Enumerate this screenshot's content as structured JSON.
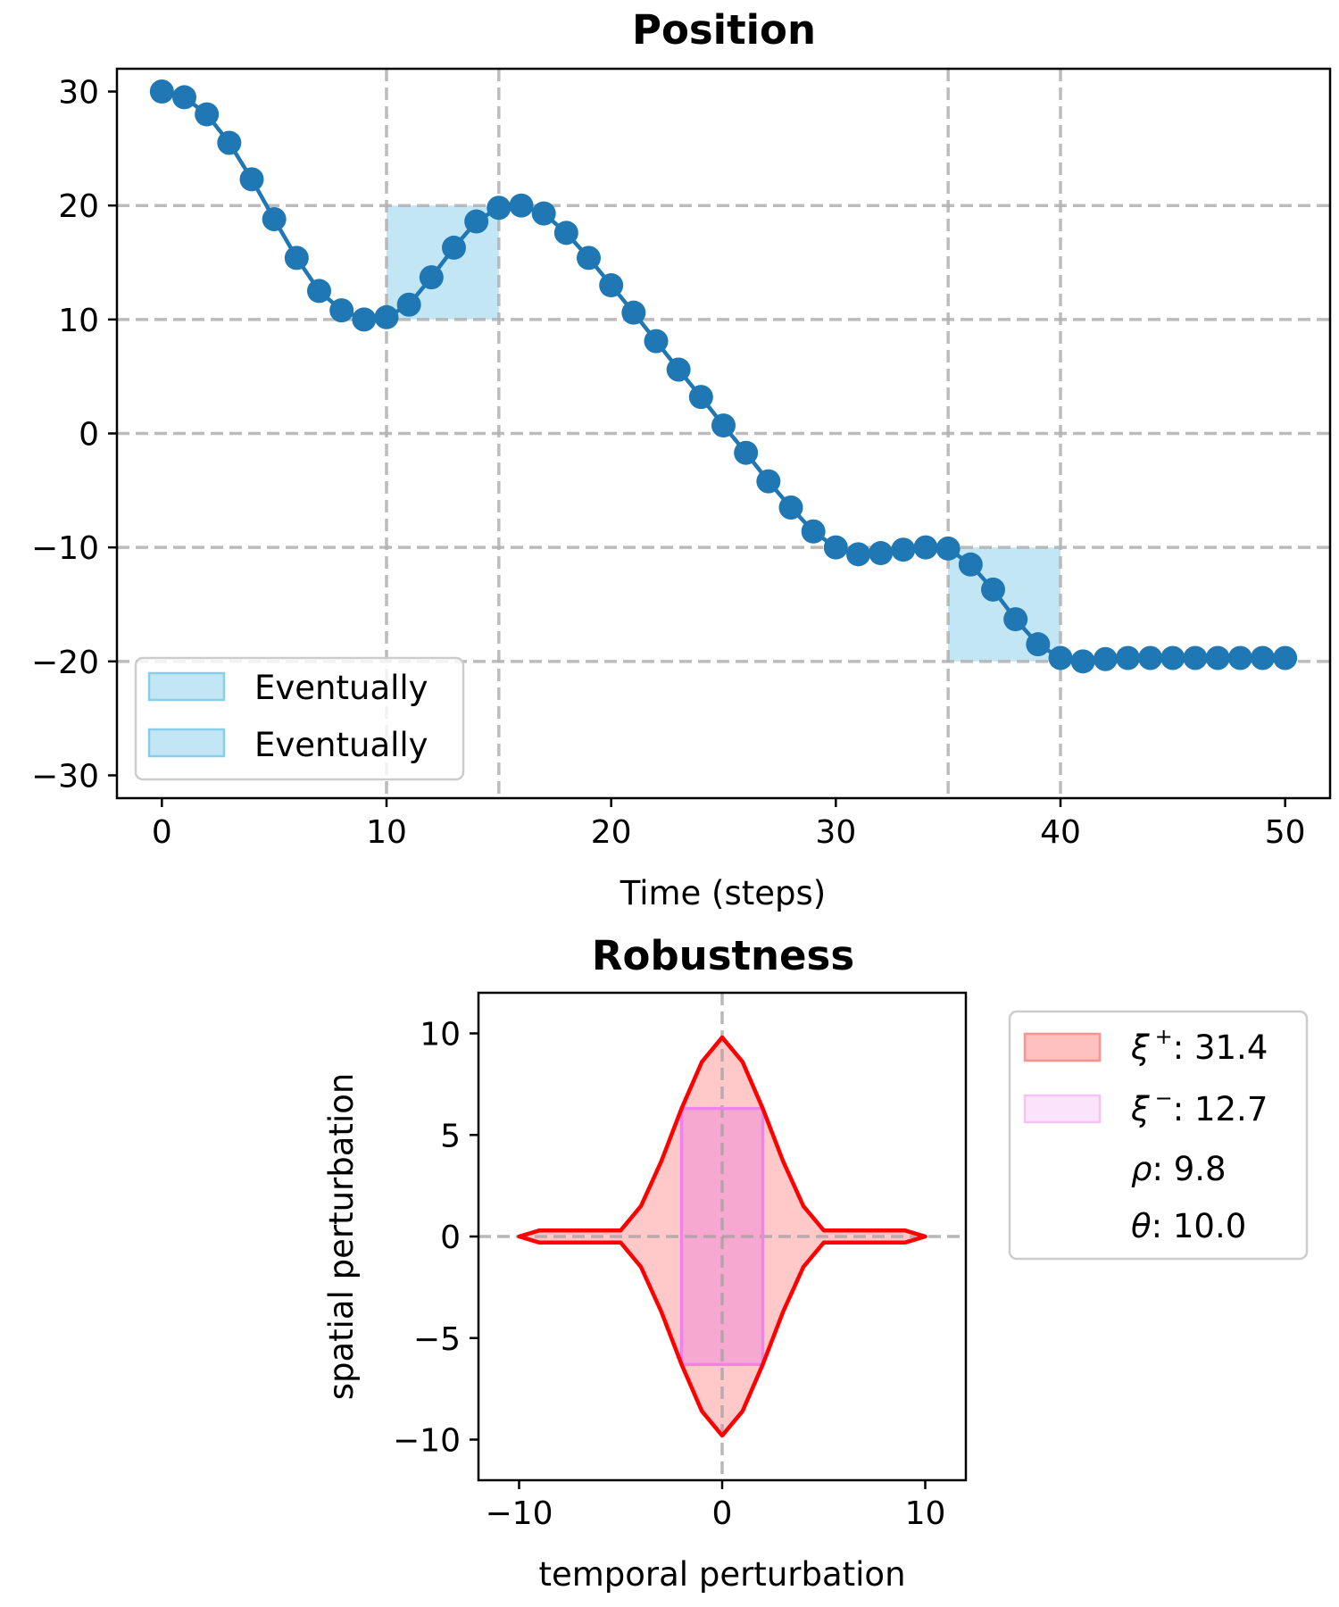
{
  "chart_data": [
    {
      "type": "line",
      "title": "Position",
      "xlabel": "Time (steps)",
      "ylabel": "",
      "xlim": [
        -2,
        52
      ],
      "ylim": [
        -32,
        32
      ],
      "xticks": [
        0,
        10,
        20,
        30,
        40,
        50
      ],
      "yticks": [
        -30,
        -20,
        -10,
        0,
        10,
        20,
        30
      ],
      "xtick_labels": [
        "0",
        "10",
        "20",
        "30",
        "40",
        "50"
      ],
      "ytick_labels": [
        "−30",
        "−20",
        "−10",
        "0",
        "10",
        "20",
        "30"
      ],
      "grid_x": [
        10,
        15,
        35,
        40
      ],
      "grid_y": [
        -20,
        -10,
        10,
        20
      ],
      "grid_y_dashed_full": [
        0
      ],
      "grid": true,
      "series": [
        {
          "color": "#1f77b4",
          "marker": "circle",
          "x": [
            0,
            1,
            2,
            3,
            4,
            5,
            6,
            7,
            8,
            9,
            10,
            11,
            12,
            13,
            14,
            15,
            16,
            17,
            18,
            19,
            20,
            21,
            22,
            23,
            24,
            25,
            26,
            27,
            28,
            29,
            30,
            31,
            32,
            33,
            34,
            35,
            36,
            37,
            38,
            39,
            40,
            41,
            42,
            43,
            44,
            45,
            46,
            47,
            48,
            49,
            50
          ],
          "y": [
            30,
            29.5,
            28,
            25.5,
            22.3,
            18.8,
            15.4,
            12.5,
            10.8,
            10,
            10.2,
            11.3,
            13.7,
            16.3,
            18.6,
            19.8,
            20,
            19.3,
            17.6,
            15.4,
            13,
            10.6,
            8.1,
            5.6,
            3.2,
            0.7,
            -1.7,
            -4.2,
            -6.5,
            -8.6,
            -10,
            -10.6,
            -10.5,
            -10.2,
            -10,
            -10.1,
            -11.5,
            -13.7,
            -16.3,
            -18.5,
            -19.7,
            -20,
            -19.8,
            -19.7,
            -19.7,
            -19.7,
            -19.7,
            -19.7,
            -19.7,
            -19.7,
            -19.7
          ]
        }
      ],
      "regions": [
        {
          "x0": 10,
          "x1": 15,
          "y0": 10,
          "y1": 20,
          "label": "Eventually",
          "color": "#87ceeb"
        },
        {
          "x0": 35,
          "x1": 40,
          "y0": -20,
          "y1": -10,
          "label": "Eventually",
          "color": "#87ceeb"
        }
      ],
      "legend": {
        "placement": "lower-left",
        "entries": [
          {
            "label": "Eventually",
            "color": "#87ceeb"
          },
          {
            "label": "Eventually",
            "color": "#87ceeb"
          }
        ]
      }
    },
    {
      "type": "area",
      "title": "Robustness",
      "xlabel": "temporal perturbation",
      "ylabel": "spatial perturbation",
      "xlim": [
        -12,
        12
      ],
      "ylim": [
        -12,
        12
      ],
      "xticks": [
        -10,
        0,
        10
      ],
      "yticks": [
        -10,
        -5,
        0,
        5,
        10
      ],
      "xtick_labels": [
        "−10",
        "0",
        "10"
      ],
      "ytick_labels": [
        "−10",
        "−5",
        "0",
        "5",
        "10"
      ],
      "grid_x": [
        0
      ],
      "grid_y": [
        0
      ],
      "outer_region": {
        "color": "#ff0000",
        "fill": "#ffc0c0",
        "points": [
          [
            -10,
            0
          ],
          [
            -9,
            0.3
          ],
          [
            -5,
            0.3
          ],
          [
            -4,
            1.5
          ],
          [
            -3,
            3.7
          ],
          [
            -2,
            6.3
          ],
          [
            -1,
            8.6
          ],
          [
            0,
            9.8
          ],
          [
            1,
            8.6
          ],
          [
            2,
            6.3
          ],
          [
            3,
            3.7
          ],
          [
            4,
            1.5
          ],
          [
            5,
            0.3
          ],
          [
            9,
            0.3
          ],
          [
            10,
            0
          ],
          [
            9,
            -0.3
          ],
          [
            5,
            -0.3
          ],
          [
            4,
            -1.5
          ],
          [
            3,
            -3.7
          ],
          [
            2,
            -6.3
          ],
          [
            1,
            -8.6
          ],
          [
            0,
            -9.8
          ],
          [
            -1,
            -8.6
          ],
          [
            -2,
            -6.3
          ],
          [
            -3,
            -3.7
          ],
          [
            -4,
            -1.5
          ],
          [
            -5,
            -0.3
          ],
          [
            -9,
            -0.3
          ]
        ]
      },
      "inner_region": {
        "color": "#ee82ee",
        "fill": "#f4a0d2",
        "x0": -2,
        "x1": 2,
        "y0": -6.3,
        "y1": 6.3
      },
      "legend": {
        "placement": "outside-right",
        "entries": [
          {
            "symbol": "ξ",
            "sup": "+",
            "value_text": ": 31.4",
            "swatch": "#ffc0c0",
            "swatch_edge": "#ff9090"
          },
          {
            "symbol": "ξ",
            "sup": "−",
            "value_text": ": 12.7",
            "swatch": "#fbe3fb",
            "swatch_edge": "#f4c2f4"
          },
          {
            "symbol": "ρ",
            "sup": "",
            "value_text": ": 9.8",
            "swatch": null
          },
          {
            "symbol": "θ",
            "sup": "",
            "value_text": ": 10.0",
            "swatch": null
          }
        ]
      }
    }
  ]
}
